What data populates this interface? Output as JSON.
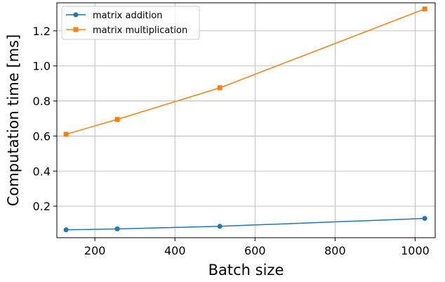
{
  "chart_data": {
    "type": "line",
    "xlabel": "Batch size",
    "ylabel": "Computation time [ms]",
    "xlim": [
      105,
      1050
    ],
    "ylim": [
      0.02,
      1.36
    ],
    "xticks": [
      200,
      400,
      600,
      800,
      1000
    ],
    "yticks": [
      0.2,
      0.4,
      0.6,
      0.8,
      1.0,
      1.2
    ],
    "xtick_labels": [
      "200",
      "400",
      "600",
      "800",
      "1000"
    ],
    "ytick_labels": [
      "0.2",
      "0.4",
      "0.6",
      "0.8",
      "1.0",
      "1.2"
    ],
    "grid": true,
    "legend_position": "top-left",
    "x": [
      128,
      256,
      512,
      1024
    ],
    "series": [
      {
        "name": "matrix addition",
        "values": [
          0.065,
          0.07,
          0.085,
          0.13
        ],
        "color": "#1f77b4",
        "marker": "circle"
      },
      {
        "name": "matrix multiplication",
        "values": [
          0.61,
          0.695,
          0.875,
          1.325
        ],
        "color": "#ff7f0e",
        "marker": "square"
      }
    ]
  }
}
